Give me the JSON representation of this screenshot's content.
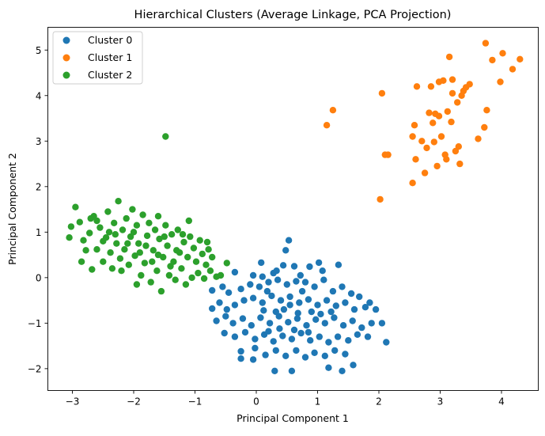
{
  "chart_data": {
    "type": "scatter",
    "title": "Hierarchical Clusters (Average Linkage, PCA Projection)",
    "xlabel": "Principal Component 1",
    "ylabel": "Principal Component 2",
    "xlim": [
      -3.4,
      4.6
    ],
    "ylim": [
      -2.48,
      5.5
    ],
    "xticks": [
      -3,
      -2,
      -1,
      0,
      1,
      2,
      3,
      4
    ],
    "yticks": [
      -2,
      -1,
      0,
      1,
      2,
      3,
      4,
      5
    ],
    "xtick_labels": [
      "−3",
      "−2",
      "−1",
      "0",
      "1",
      "2",
      "3",
      "4"
    ],
    "ytick_labels": [
      "−2",
      "−1",
      "0",
      "1",
      "2",
      "3",
      "4",
      "5"
    ],
    "grid": false,
    "legend_position": "top-left",
    "series": [
      {
        "name": "Cluster 0",
        "color": "#1f77b4",
        "points": [
          [
            0.53,
            0.82
          ],
          [
            0.48,
            0.6
          ],
          [
            0.08,
            0.33
          ],
          [
            0.44,
            0.27
          ],
          [
            0.62,
            0.25
          ],
          [
            0.87,
            0.24
          ],
          [
            1.02,
            0.33
          ],
          [
            1.08,
            0.15
          ],
          [
            1.34,
            0.28
          ],
          [
            0.28,
            0.1
          ],
          [
            0.33,
            0.15
          ],
          [
            0.72,
            0.05
          ],
          [
            -0.35,
            0.12
          ],
          [
            -0.05,
            0.05
          ],
          [
            0.1,
            0.02
          ],
          [
            -0.72,
            -0.28
          ],
          [
            -0.55,
            -0.2
          ],
          [
            -0.45,
            -0.33
          ],
          [
            -0.25,
            -0.25
          ],
          [
            -0.1,
            -0.15
          ],
          [
            0.05,
            -0.2
          ],
          [
            0.2,
            -0.1
          ],
          [
            0.35,
            -0.05
          ],
          [
            0.5,
            -0.15
          ],
          [
            0.65,
            -0.08
          ],
          [
            0.8,
            -0.1
          ],
          [
            0.95,
            -0.2
          ],
          [
            1.1,
            -0.05
          ],
          [
            1.25,
            -0.3
          ],
          [
            1.4,
            -0.2
          ],
          [
            1.55,
            -0.35
          ],
          [
            1.68,
            -0.42
          ],
          [
            1.85,
            -0.55
          ],
          [
            -0.72,
            -0.68
          ],
          [
            -0.6,
            -0.55
          ],
          [
            -0.48,
            -0.7
          ],
          [
            -0.35,
            -0.6
          ],
          [
            -0.2,
            -0.5
          ],
          [
            -0.05,
            -0.45
          ],
          [
            0.1,
            -0.55
          ],
          [
            0.25,
            -0.4
          ],
          [
            0.4,
            -0.5
          ],
          [
            0.55,
            -0.42
          ],
          [
            0.7,
            -0.55
          ],
          [
            0.85,
            -0.48
          ],
          [
            1.0,
            -0.6
          ],
          [
            1.15,
            -0.5
          ],
          [
            1.3,
            -0.62
          ],
          [
            1.45,
            -0.55
          ],
          [
            1.6,
            -0.7
          ],
          [
            1.78,
            -0.65
          ],
          [
            1.95,
            -0.7
          ],
          [
            -0.65,
            -0.95
          ],
          [
            -0.5,
            -0.85
          ],
          [
            -0.38,
            -1.0
          ],
          [
            -0.22,
            -0.9
          ],
          [
            -0.08,
            -1.05
          ],
          [
            0.07,
            -0.88
          ],
          [
            0.22,
            -1.0
          ],
          [
            0.37,
            -0.85
          ],
          [
            0.52,
            -0.98
          ],
          [
            0.67,
            -0.9
          ],
          [
            0.82,
            -1.05
          ],
          [
            0.97,
            -0.92
          ],
          [
            1.12,
            -1.0
          ],
          [
            1.27,
            -0.88
          ],
          [
            1.42,
            -1.05
          ],
          [
            1.57,
            -0.95
          ],
          [
            1.72,
            -1.1
          ],
          [
            1.88,
            -1.0
          ],
          [
            2.05,
            -1.0
          ],
          [
            -0.52,
            -1.22
          ],
          [
            -0.35,
            -1.3
          ],
          [
            -0.18,
            -1.2
          ],
          [
            -0.02,
            -1.35
          ],
          [
            0.13,
            -1.25
          ],
          [
            0.28,
            -1.4
          ],
          [
            0.43,
            -1.28
          ],
          [
            0.58,
            -1.35
          ],
          [
            0.73,
            -1.22
          ],
          [
            0.88,
            -1.38
          ],
          [
            1.03,
            -1.3
          ],
          [
            1.18,
            -1.42
          ],
          [
            1.33,
            -1.3
          ],
          [
            1.5,
            -1.38
          ],
          [
            1.65,
            -1.25
          ],
          [
            1.82,
            -1.3
          ],
          [
            2.12,
            -1.42
          ],
          [
            -0.25,
            -1.62
          ],
          [
            -0.02,
            -1.55
          ],
          [
            0.15,
            -1.7
          ],
          [
            0.32,
            -1.6
          ],
          [
            0.48,
            -1.72
          ],
          [
            0.65,
            -1.6
          ],
          [
            0.8,
            -1.75
          ],
          [
            0.95,
            -1.65
          ],
          [
            1.12,
            -1.72
          ],
          [
            1.28,
            -1.6
          ],
          [
            1.45,
            -1.68
          ],
          [
            -0.25,
            -1.78
          ],
          [
            -0.05,
            -1.8
          ],
          [
            0.3,
            -2.05
          ],
          [
            0.58,
            -2.05
          ],
          [
            1.18,
            -1.98
          ],
          [
            1.4,
            -2.05
          ],
          [
            1.58,
            -1.92
          ],
          [
            0.18,
            -0.3
          ],
          [
            0.45,
            -0.7
          ],
          [
            0.62,
            -1.15
          ],
          [
            0.32,
            -0.75
          ],
          [
            0.9,
            -0.75
          ],
          [
            0.75,
            -0.3
          ],
          [
            0.12,
            -0.72
          ],
          [
            1.22,
            -0.75
          ],
          [
            0.55,
            -0.6
          ],
          [
            0.38,
            -1.12
          ],
          [
            0.85,
            -1.2
          ],
          [
            0.2,
            -1.18
          ],
          [
            1.05,
            -0.8
          ],
          [
            0.68,
            -0.78
          ]
        ]
      },
      {
        "name": "Cluster 1",
        "color": "#ff7f0e",
        "points": [
          [
            1.15,
            3.35
          ],
          [
            1.25,
            3.68
          ],
          [
            2.05,
            4.05
          ],
          [
            2.02,
            1.72
          ],
          [
            2.1,
            2.7
          ],
          [
            2.15,
            2.7
          ],
          [
            2.55,
            2.08
          ],
          [
            2.55,
            3.1
          ],
          [
            2.58,
            3.35
          ],
          [
            2.6,
            2.6
          ],
          [
            2.62,
            4.2
          ],
          [
            2.7,
            3.0
          ],
          [
            2.75,
            2.3
          ],
          [
            2.78,
            2.85
          ],
          [
            2.82,
            3.62
          ],
          [
            2.85,
            4.2
          ],
          [
            2.88,
            3.4
          ],
          [
            2.9,
            2.98
          ],
          [
            2.92,
            3.6
          ],
          [
            2.95,
            2.45
          ],
          [
            2.98,
            3.55
          ],
          [
            2.98,
            4.3
          ],
          [
            3.02,
            3.1
          ],
          [
            3.05,
            4.33
          ],
          [
            3.08,
            2.7
          ],
          [
            3.1,
            2.6
          ],
          [
            3.12,
            3.65
          ],
          [
            3.15,
            4.85
          ],
          [
            3.18,
            3.42
          ],
          [
            3.2,
            4.35
          ],
          [
            3.25,
            2.78
          ],
          [
            3.28,
            3.85
          ],
          [
            3.3,
            2.88
          ],
          [
            3.32,
            2.5
          ],
          [
            3.35,
            4.0
          ],
          [
            3.38,
            4.1
          ],
          [
            3.42,
            4.18
          ],
          [
            3.48,
            4.25
          ],
          [
            3.62,
            3.05
          ],
          [
            3.72,
            3.3
          ],
          [
            3.74,
            5.15
          ],
          [
            3.76,
            3.68
          ],
          [
            3.85,
            4.78
          ],
          [
            3.98,
            4.3
          ],
          [
            4.02,
            4.93
          ],
          [
            4.18,
            4.58
          ],
          [
            4.3,
            4.8
          ],
          [
            3.2,
            4.05
          ]
        ]
      },
      {
        "name": "Cluster 2",
        "color": "#2ca02c",
        "points": [
          [
            -1.48,
            3.1
          ],
          [
            -3.05,
            0.88
          ],
          [
            -3.02,
            1.12
          ],
          [
            -2.95,
            1.55
          ],
          [
            -2.88,
            1.22
          ],
          [
            -2.82,
            0.82
          ],
          [
            -2.78,
            0.6
          ],
          [
            -2.72,
            0.98
          ],
          [
            -2.68,
            0.18
          ],
          [
            -2.65,
            1.35
          ],
          [
            -2.6,
            0.62
          ],
          [
            -2.55,
            1.1
          ],
          [
            -2.5,
            0.35
          ],
          [
            -2.45,
            0.88
          ],
          [
            -2.42,
            1.45
          ],
          [
            -2.38,
            0.55
          ],
          [
            -2.35,
            0.2
          ],
          [
            -2.32,
            1.2
          ],
          [
            -2.28,
            0.75
          ],
          [
            -2.25,
            1.68
          ],
          [
            -2.22,
            0.42
          ],
          [
            -2.18,
            1.05
          ],
          [
            -2.15,
            0.62
          ],
          [
            -2.12,
            1.3
          ],
          [
            -2.08,
            0.28
          ],
          [
            -2.05,
            0.9
          ],
          [
            -2.02,
            1.5
          ],
          [
            -1.98,
            0.48
          ],
          [
            -1.95,
            1.15
          ],
          [
            -1.92,
            0.75
          ],
          [
            -1.88,
            0.05
          ],
          [
            -1.85,
            1.38
          ],
          [
            -1.82,
            0.32
          ],
          [
            -1.78,
            0.92
          ],
          [
            -1.75,
            1.2
          ],
          [
            -1.72,
            -0.1
          ],
          [
            -1.68,
            0.6
          ],
          [
            -1.65,
            1.05
          ],
          [
            -1.62,
            0.15
          ],
          [
            -1.58,
            0.85
          ],
          [
            -1.55,
            -0.3
          ],
          [
            -1.52,
            0.45
          ],
          [
            -1.48,
            1.15
          ],
          [
            -1.45,
            0.7
          ],
          [
            -1.42,
            0.05
          ],
          [
            -1.38,
            0.95
          ],
          [
            -1.35,
            0.35
          ],
          [
            -1.32,
            -0.05
          ],
          [
            -1.28,
            1.05
          ],
          [
            -1.25,
            0.55
          ],
          [
            -1.22,
            0.2
          ],
          [
            -1.18,
            0.78
          ],
          [
            -1.15,
            -0.15
          ],
          [
            -1.12,
            0.45
          ],
          [
            -1.08,
            0.9
          ],
          [
            -1.05,
            0.0
          ],
          [
            -1.02,
            0.65
          ],
          [
            -0.98,
            0.35
          ],
          [
            -0.95,
            0.1
          ],
          [
            -0.92,
            0.82
          ],
          [
            -0.88,
            0.52
          ],
          [
            -0.85,
            -0.02
          ],
          [
            -0.82,
            0.28
          ],
          [
            -0.78,
            0.62
          ],
          [
            -0.75,
            0.15
          ],
          [
            -0.72,
            0.45
          ],
          [
            -0.65,
            0.02
          ],
          [
            -0.58,
            0.05
          ],
          [
            -0.48,
            0.32
          ],
          [
            -1.1,
            1.25
          ],
          [
            -2.7,
            1.3
          ],
          [
            -2.4,
            1.0
          ],
          [
            -2.0,
            1.0
          ],
          [
            -1.9,
            0.55
          ],
          [
            -1.6,
            0.5
          ],
          [
            -1.8,
            0.7
          ],
          [
            -2.1,
            0.75
          ],
          [
            -1.7,
            0.35
          ],
          [
            -1.5,
            0.9
          ],
          [
            -2.3,
            0.95
          ],
          [
            -2.6,
            1.25
          ],
          [
            -1.3,
            0.6
          ],
          [
            -1.4,
            0.25
          ],
          [
            -2.2,
            0.15
          ],
          [
            -1.95,
            -0.15
          ],
          [
            -0.8,
            0.78
          ],
          [
            -1.6,
            1.35
          ],
          [
            -2.5,
            0.8
          ],
          [
            -1.2,
            0.95
          ],
          [
            -2.85,
            0.35
          ]
        ]
      }
    ]
  }
}
